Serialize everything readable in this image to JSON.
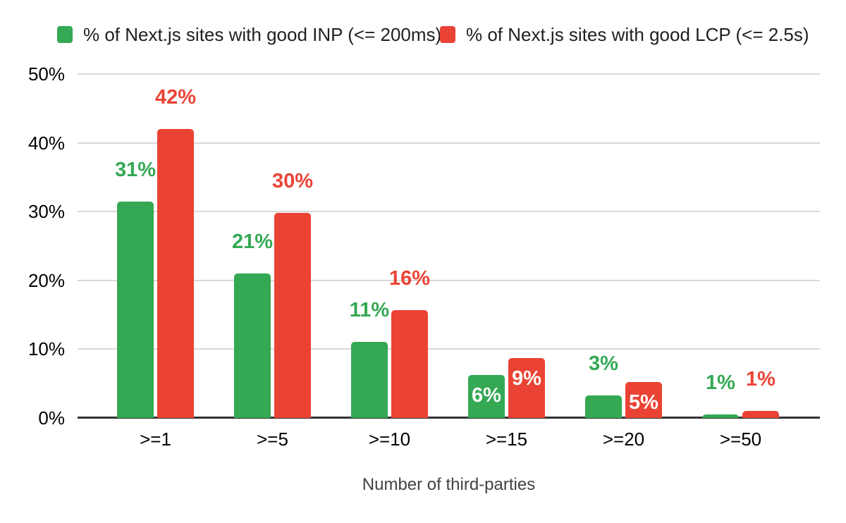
{
  "chart_data": {
    "type": "bar",
    "title": "",
    "xlabel": "Number of third-parties",
    "ylabel": "",
    "ylim": [
      0,
      50
    ],
    "ytick_values": [
      0,
      10,
      20,
      30,
      40,
      50
    ],
    "ytick_labels": [
      "0%",
      "10%",
      "20%",
      "30%",
      "40%",
      "50%"
    ],
    "categories": [
      ">=1",
      ">=5",
      ">=10",
      ">=15",
      ">=20",
      ">=50"
    ],
    "grid": true,
    "legend_position": "top",
    "series": [
      {
        "name": "% of Next.js sites with good INP (<= 200ms)",
        "color": "#34a853",
        "values": [
          31.5,
          21,
          11.1,
          6.3,
          3.3,
          0.5
        ],
        "labels": [
          "31%",
          "21%",
          "11%",
          "6%",
          "3%",
          "1%"
        ],
        "label_placement": [
          "above",
          "above",
          "above",
          "inside",
          "above",
          "above"
        ]
      },
      {
        "name": "% of Next.js sites with good LCP (<= 2.5s)",
        "color": "#ea4335",
        "values": [
          42,
          29.8,
          15.7,
          8.7,
          5.2,
          1.0
        ],
        "labels": [
          "42%",
          "30%",
          "16%",
          "9%",
          "5%",
          "1%"
        ],
        "label_placement": [
          "above",
          "above",
          "above",
          "inside",
          "inside",
          "above"
        ]
      }
    ],
    "colors": {
      "grid": "#d9d9d9",
      "axis": "#333333",
      "tick_text": "#000000",
      "title_text": "#424242",
      "inside_label_text": "#ffffff"
    }
  }
}
